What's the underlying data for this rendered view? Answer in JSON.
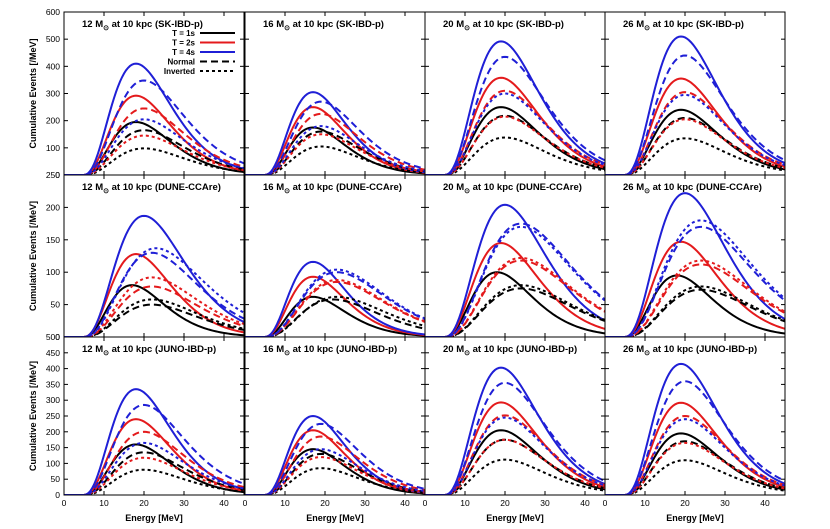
{
  "figure": {
    "ylabel": "Cumulative Events [/MeV]",
    "xlabel": "Energy [MeV]"
  },
  "legend": {
    "entries": [
      {
        "label": "T = 1s",
        "color": "#000000",
        "dash": "solid"
      },
      {
        "label": "T = 2s",
        "color": "#e41a1c",
        "dash": "solid"
      },
      {
        "label": "T = 4s",
        "color": "#1f1fd6",
        "dash": "solid"
      },
      {
        "label": "Normal",
        "color": "#000000",
        "dash": "long"
      },
      {
        "label": "Inverted",
        "color": "#000000",
        "dash": "short"
      }
    ]
  },
  "colors": {
    "T1": "#000000",
    "T2": "#e41a1c",
    "T4": "#1f1fd6"
  },
  "chart_data": [
    {
      "type": "line",
      "row": 0,
      "col": 0,
      "title_prefix": "12 M",
      "title_suffix": " at 10 kpc (SK-IBD-p)",
      "xlim": [
        0,
        45
      ],
      "ylim": [
        0,
        600
      ],
      "xticks": [
        0,
        10,
        20,
        30,
        40
      ],
      "yticks": [
        0,
        100,
        200,
        300,
        400,
        500,
        600
      ],
      "series": [
        {
          "time": "1s",
          "ordering": "none",
          "peak_x": 18,
          "peak_y": 195
        },
        {
          "time": "2s",
          "ordering": "none",
          "peak_x": 18,
          "peak_y": 292
        },
        {
          "time": "4s",
          "ordering": "none",
          "peak_x": 18,
          "peak_y": 410
        },
        {
          "time": "1s",
          "ordering": "Normal",
          "peak_x": 20,
          "peak_y": 165
        },
        {
          "time": "2s",
          "ordering": "Normal",
          "peak_x": 20,
          "peak_y": 245
        },
        {
          "time": "4s",
          "ordering": "Normal",
          "peak_x": 20,
          "peak_y": 348
        },
        {
          "time": "1s",
          "ordering": "Inverted",
          "peak_x": 20,
          "peak_y": 98
        },
        {
          "time": "2s",
          "ordering": "Inverted",
          "peak_x": 20,
          "peak_y": 145
        },
        {
          "time": "4s",
          "ordering": "Inverted",
          "peak_x": 20,
          "peak_y": 205
        }
      ]
    },
    {
      "type": "line",
      "row": 0,
      "col": 1,
      "title_prefix": "16 M",
      "title_suffix": " at 10 kpc (SK-IBD-p)",
      "xlim": [
        0,
        45
      ],
      "ylim": [
        0,
        600
      ],
      "xticks": [
        0,
        10,
        20,
        30,
        40
      ],
      "yticks": [
        0,
        100,
        200,
        300,
        400,
        500,
        600
      ],
      "series": [
        {
          "time": "1s",
          "ordering": "none",
          "peak_x": 17,
          "peak_y": 175
        },
        {
          "time": "2s",
          "ordering": "none",
          "peak_x": 17,
          "peak_y": 250
        },
        {
          "time": "4s",
          "ordering": "none",
          "peak_x": 17,
          "peak_y": 305
        },
        {
          "time": "1s",
          "ordering": "Normal",
          "peak_x": 19,
          "peak_y": 160
        },
        {
          "time": "2s",
          "ordering": "Normal",
          "peak_x": 19,
          "peak_y": 225
        },
        {
          "time": "4s",
          "ordering": "Normal",
          "peak_x": 19,
          "peak_y": 270
        },
        {
          "time": "1s",
          "ordering": "Inverted",
          "peak_x": 19,
          "peak_y": 105
        },
        {
          "time": "2s",
          "ordering": "Inverted",
          "peak_x": 19,
          "peak_y": 150
        },
        {
          "time": "4s",
          "ordering": "Inverted",
          "peak_x": 19,
          "peak_y": 180
        }
      ]
    },
    {
      "type": "line",
      "row": 0,
      "col": 2,
      "title_prefix": "20 M",
      "title_suffix": " at 10 kpc (SK-IBD-p)",
      "xlim": [
        0,
        45
      ],
      "ylim": [
        0,
        600
      ],
      "xticks": [
        0,
        10,
        20,
        30,
        40
      ],
      "yticks": [
        0,
        100,
        200,
        300,
        400,
        500,
        600
      ],
      "series": [
        {
          "time": "1s",
          "ordering": "none",
          "peak_x": 19,
          "peak_y": 250
        },
        {
          "time": "2s",
          "ordering": "none",
          "peak_x": 19,
          "peak_y": 358
        },
        {
          "time": "4s",
          "ordering": "none",
          "peak_x": 19,
          "peak_y": 492
        },
        {
          "time": "1s",
          "ordering": "Normal",
          "peak_x": 20,
          "peak_y": 218
        },
        {
          "time": "2s",
          "ordering": "Normal",
          "peak_x": 20,
          "peak_y": 310
        },
        {
          "time": "4s",
          "ordering": "Normal",
          "peak_x": 20,
          "peak_y": 435
        },
        {
          "time": "1s",
          "ordering": "Inverted",
          "peak_x": 20,
          "peak_y": 138
        },
        {
          "time": "2s",
          "ordering": "Inverted",
          "peak_x": 20,
          "peak_y": 215
        },
        {
          "time": "4s",
          "ordering": "Inverted",
          "peak_x": 20,
          "peak_y": 300
        }
      ]
    },
    {
      "type": "line",
      "row": 0,
      "col": 3,
      "title_prefix": "26 M",
      "title_suffix": " at 10 kpc (SK-IBD-p)",
      "xlim": [
        0,
        45
      ],
      "ylim": [
        0,
        600
      ],
      "xticks": [
        0,
        10,
        20,
        30,
        40
      ],
      "yticks": [
        0,
        100,
        200,
        300,
        400,
        500,
        600
      ],
      "series": [
        {
          "time": "1s",
          "ordering": "none",
          "peak_x": 19,
          "peak_y": 240
        },
        {
          "time": "2s",
          "ordering": "none",
          "peak_x": 19,
          "peak_y": 355
        },
        {
          "time": "4s",
          "ordering": "none",
          "peak_x": 19,
          "peak_y": 510
        },
        {
          "time": "1s",
          "ordering": "Normal",
          "peak_x": 20,
          "peak_y": 210
        },
        {
          "time": "2s",
          "ordering": "Normal",
          "peak_x": 20,
          "peak_y": 305
        },
        {
          "time": "4s",
          "ordering": "Normal",
          "peak_x": 20,
          "peak_y": 440
        },
        {
          "time": "1s",
          "ordering": "Inverted",
          "peak_x": 20,
          "peak_y": 135
        },
        {
          "time": "2s",
          "ordering": "Inverted",
          "peak_x": 20,
          "peak_y": 205
        },
        {
          "time": "4s",
          "ordering": "Inverted",
          "peak_x": 20,
          "peak_y": 295
        }
      ]
    },
    {
      "type": "line",
      "row": 1,
      "col": 0,
      "title_prefix": "12 M",
      "title_suffix": " at 10 kpc (DUNE-CCAre)",
      "xlim": [
        0,
        45
      ],
      "ylim": [
        0,
        250
      ],
      "xticks": [
        0,
        10,
        20,
        30,
        40
      ],
      "yticks": [
        0,
        50,
        100,
        150,
        200,
        250
      ],
      "series": [
        {
          "time": "1s",
          "ordering": "none",
          "peak_x": 17,
          "peak_y": 80
        },
        {
          "time": "2s",
          "ordering": "none",
          "peak_x": 18,
          "peak_y": 128
        },
        {
          "time": "4s",
          "ordering": "none",
          "peak_x": 20,
          "peak_y": 187
        },
        {
          "time": "1s",
          "ordering": "Normal",
          "peak_x": 22,
          "peak_y": 50
        },
        {
          "time": "2s",
          "ordering": "Normal",
          "peak_x": 22,
          "peak_y": 78
        },
        {
          "time": "4s",
          "ordering": "Normal",
          "peak_x": 22,
          "peak_y": 130
        },
        {
          "time": "1s",
          "ordering": "Inverted",
          "peak_x": 22,
          "peak_y": 58
        },
        {
          "time": "2s",
          "ordering": "Inverted",
          "peak_x": 22,
          "peak_y": 92
        },
        {
          "time": "4s",
          "ordering": "Inverted",
          "peak_x": 23,
          "peak_y": 137
        }
      ]
    },
    {
      "type": "line",
      "row": 1,
      "col": 1,
      "title_prefix": "16 M",
      "title_suffix": " at 10 kpc (DUNE-CCAre)",
      "xlim": [
        0,
        45
      ],
      "ylim": [
        0,
        250
      ],
      "xticks": [
        0,
        10,
        20,
        30,
        40
      ],
      "yticks": [
        0,
        50,
        100,
        150,
        200,
        250
      ],
      "series": [
        {
          "time": "1s",
          "ordering": "none",
          "peak_x": 17,
          "peak_y": 62
        },
        {
          "time": "2s",
          "ordering": "none",
          "peak_x": 17,
          "peak_y": 93
        },
        {
          "time": "4s",
          "ordering": "none",
          "peak_x": 17,
          "peak_y": 116
        },
        {
          "time": "1s",
          "ordering": "Normal",
          "peak_x": 22,
          "peak_y": 58
        },
        {
          "time": "2s",
          "ordering": "Normal",
          "peak_x": 23,
          "peak_y": 85
        },
        {
          "time": "4s",
          "ordering": "Normal",
          "peak_x": 23,
          "peak_y": 100
        },
        {
          "time": "1s",
          "ordering": "Inverted",
          "peak_x": 23,
          "peak_y": 62
        },
        {
          "time": "2s",
          "ordering": "Inverted",
          "peak_x": 23,
          "peak_y": 88
        },
        {
          "time": "4s",
          "ordering": "Inverted",
          "peak_x": 23,
          "peak_y": 104
        }
      ]
    },
    {
      "type": "line",
      "row": 1,
      "col": 2,
      "title_prefix": "20 M",
      "title_suffix": " at 10 kpc (DUNE-CCAre)",
      "xlim": [
        0,
        45
      ],
      "ylim": [
        0,
        250
      ],
      "xticks": [
        0,
        10,
        20,
        30,
        40
      ],
      "yticks": [
        0,
        50,
        100,
        150,
        200,
        250
      ],
      "series": [
        {
          "time": "1s",
          "ordering": "none",
          "peak_x": 18,
          "peak_y": 100
        },
        {
          "time": "2s",
          "ordering": "none",
          "peak_x": 19,
          "peak_y": 145
        },
        {
          "time": "4s",
          "ordering": "none",
          "peak_x": 20,
          "peak_y": 204
        },
        {
          "time": "1s",
          "ordering": "Normal",
          "peak_x": 24,
          "peak_y": 75
        },
        {
          "time": "2s",
          "ordering": "Normal",
          "peak_x": 24,
          "peak_y": 118
        },
        {
          "time": "4s",
          "ordering": "Normal",
          "peak_x": 24,
          "peak_y": 175
        },
        {
          "time": "1s",
          "ordering": "Inverted",
          "peak_x": 24,
          "peak_y": 80
        },
        {
          "time": "2s",
          "ordering": "Inverted",
          "peak_x": 24,
          "peak_y": 122
        },
        {
          "time": "4s",
          "ordering": "Inverted",
          "peak_x": 24,
          "peak_y": 170
        }
      ]
    },
    {
      "type": "line",
      "row": 1,
      "col": 3,
      "title_prefix": "26 M",
      "title_suffix": " at 10 kpc (DUNE-CCAre)",
      "xlim": [
        0,
        45
      ],
      "ylim": [
        0,
        250
      ],
      "xticks": [
        0,
        10,
        20,
        30,
        40
      ],
      "yticks": [
        0,
        50,
        100,
        150,
        200,
        250
      ],
      "series": [
        {
          "time": "1s",
          "ordering": "none",
          "peak_x": 18,
          "peak_y": 95
        },
        {
          "time": "2s",
          "ordering": "none",
          "peak_x": 19,
          "peak_y": 147
        },
        {
          "time": "4s",
          "ordering": "none",
          "peak_x": 20,
          "peak_y": 222
        },
        {
          "time": "1s",
          "ordering": "Normal",
          "peak_x": 24,
          "peak_y": 73
        },
        {
          "time": "2s",
          "ordering": "Normal",
          "peak_x": 24,
          "peak_y": 112
        },
        {
          "time": "4s",
          "ordering": "Normal",
          "peak_x": 24,
          "peak_y": 170
        },
        {
          "time": "1s",
          "ordering": "Inverted",
          "peak_x": 24,
          "peak_y": 78
        },
        {
          "time": "2s",
          "ordering": "Inverted",
          "peak_x": 24,
          "peak_y": 118
        },
        {
          "time": "4s",
          "ordering": "Inverted",
          "peak_x": 24,
          "peak_y": 180
        }
      ]
    },
    {
      "type": "line",
      "row": 2,
      "col": 0,
      "title_prefix": "12 M",
      "title_suffix": " at 10 kpc (JUNO-IBD-p)",
      "xlim": [
        0,
        45
      ],
      "ylim": [
        0,
        500
      ],
      "xticks": [
        0,
        10,
        20,
        30,
        40
      ],
      "yticks": [
        0,
        50,
        100,
        150,
        200,
        250,
        300,
        350,
        400,
        450,
        500
      ],
      "series": [
        {
          "time": "1s",
          "ordering": "none",
          "peak_x": 18,
          "peak_y": 160
        },
        {
          "time": "2s",
          "ordering": "none",
          "peak_x": 18,
          "peak_y": 240
        },
        {
          "time": "4s",
          "ordering": "none",
          "peak_x": 18,
          "peak_y": 335
        },
        {
          "time": "1s",
          "ordering": "Normal",
          "peak_x": 20,
          "peak_y": 135
        },
        {
          "time": "2s",
          "ordering": "Normal",
          "peak_x": 20,
          "peak_y": 200
        },
        {
          "time": "4s",
          "ordering": "Normal",
          "peak_x": 20,
          "peak_y": 285
        },
        {
          "time": "1s",
          "ordering": "Inverted",
          "peak_x": 20,
          "peak_y": 80
        },
        {
          "time": "2s",
          "ordering": "Inverted",
          "peak_x": 20,
          "peak_y": 118
        },
        {
          "time": "4s",
          "ordering": "Inverted",
          "peak_x": 20,
          "peak_y": 165
        }
      ]
    },
    {
      "type": "line",
      "row": 2,
      "col": 1,
      "title_prefix": "16 M",
      "title_suffix": " at 10 kpc (JUNO-IBD-p)",
      "xlim": [
        0,
        45
      ],
      "ylim": [
        0,
        500
      ],
      "xticks": [
        0,
        10,
        20,
        30,
        40
      ],
      "yticks": [
        0,
        50,
        100,
        150,
        200,
        250,
        300,
        350,
        400,
        450,
        500
      ],
      "series": [
        {
          "time": "1s",
          "ordering": "none",
          "peak_x": 17,
          "peak_y": 145
        },
        {
          "time": "2s",
          "ordering": "none",
          "peak_x": 17,
          "peak_y": 205
        },
        {
          "time": "4s",
          "ordering": "none",
          "peak_x": 17,
          "peak_y": 250
        },
        {
          "time": "1s",
          "ordering": "Normal",
          "peak_x": 19,
          "peak_y": 130
        },
        {
          "time": "2s",
          "ordering": "Normal",
          "peak_x": 19,
          "peak_y": 185
        },
        {
          "time": "4s",
          "ordering": "Normal",
          "peak_x": 19,
          "peak_y": 225
        },
        {
          "time": "1s",
          "ordering": "Inverted",
          "peak_x": 19,
          "peak_y": 85
        },
        {
          "time": "2s",
          "ordering": "Inverted",
          "peak_x": 19,
          "peak_y": 120
        },
        {
          "time": "4s",
          "ordering": "Inverted",
          "peak_x": 19,
          "peak_y": 145
        }
      ]
    },
    {
      "type": "line",
      "row": 2,
      "col": 2,
      "title_prefix": "20 M",
      "title_suffix": " at 10 kpc (JUNO-IBD-p)",
      "xlim": [
        0,
        45
      ],
      "ylim": [
        0,
        500
      ],
      "xticks": [
        0,
        10,
        20,
        30,
        40
      ],
      "yticks": [
        0,
        50,
        100,
        150,
        200,
        250,
        300,
        350,
        400,
        450,
        500
      ],
      "series": [
        {
          "time": "1s",
          "ordering": "none",
          "peak_x": 19,
          "peak_y": 205
        },
        {
          "time": "2s",
          "ordering": "none",
          "peak_x": 19,
          "peak_y": 293
        },
        {
          "time": "4s",
          "ordering": "none",
          "peak_x": 19,
          "peak_y": 403
        },
        {
          "time": "1s",
          "ordering": "Normal",
          "peak_x": 20,
          "peak_y": 175
        },
        {
          "time": "2s",
          "ordering": "Normal",
          "peak_x": 20,
          "peak_y": 252
        },
        {
          "time": "4s",
          "ordering": "Normal",
          "peak_x": 20,
          "peak_y": 355
        },
        {
          "time": "1s",
          "ordering": "Inverted",
          "peak_x": 20,
          "peak_y": 112
        },
        {
          "time": "2s",
          "ordering": "Inverted",
          "peak_x": 20,
          "peak_y": 175
        },
        {
          "time": "4s",
          "ordering": "Inverted",
          "peak_x": 20,
          "peak_y": 245
        }
      ]
    },
    {
      "type": "line",
      "row": 2,
      "col": 3,
      "title_prefix": "26 M",
      "title_suffix": " at 10 kpc (JUNO-IBD-p)",
      "xlim": [
        0,
        45
      ],
      "ylim": [
        0,
        500
      ],
      "xticks": [
        0,
        10,
        20,
        30,
        40
      ],
      "yticks": [
        0,
        50,
        100,
        150,
        200,
        250,
        300,
        350,
        400,
        450,
        500
      ],
      "series": [
        {
          "time": "1s",
          "ordering": "none",
          "peak_x": 19,
          "peak_y": 195
        },
        {
          "time": "2s",
          "ordering": "none",
          "peak_x": 19,
          "peak_y": 292
        },
        {
          "time": "4s",
          "ordering": "none",
          "peak_x": 19,
          "peak_y": 415
        },
        {
          "time": "1s",
          "ordering": "Normal",
          "peak_x": 20,
          "peak_y": 170
        },
        {
          "time": "2s",
          "ordering": "Normal",
          "peak_x": 20,
          "peak_y": 250
        },
        {
          "time": "4s",
          "ordering": "Normal",
          "peak_x": 20,
          "peak_y": 360
        },
        {
          "time": "1s",
          "ordering": "Inverted",
          "peak_x": 20,
          "peak_y": 110
        },
        {
          "time": "2s",
          "ordering": "Inverted",
          "peak_x": 20,
          "peak_y": 165
        },
        {
          "time": "4s",
          "ordering": "Inverted",
          "peak_x": 20,
          "peak_y": 240
        }
      ]
    }
  ]
}
